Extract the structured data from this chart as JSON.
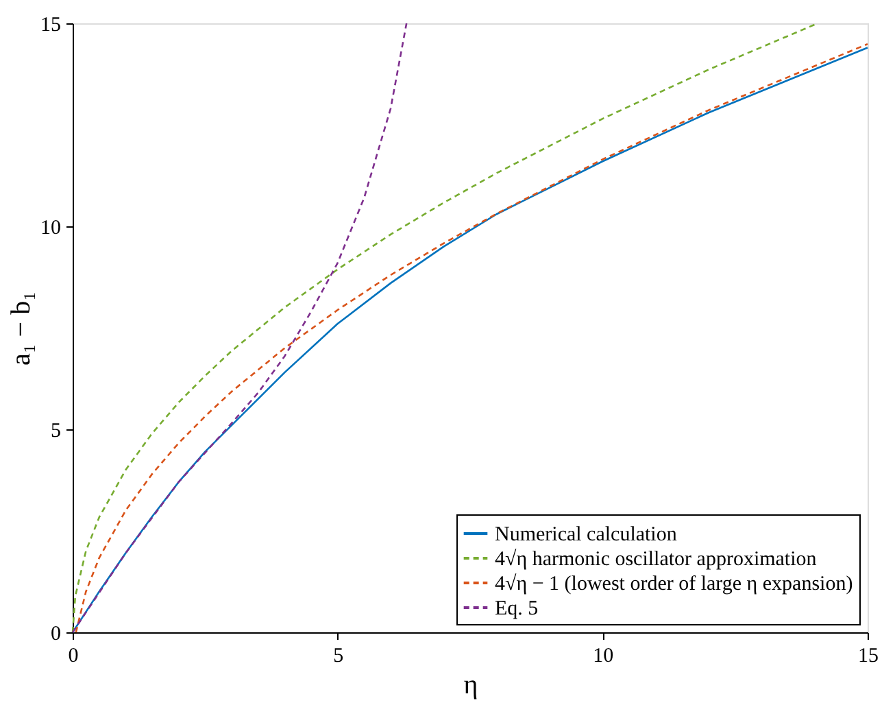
{
  "chart_data": {
    "type": "line",
    "xlabel": "η",
    "ylabel": "a₁ − b₁",
    "xlim": [
      0,
      15
    ],
    "ylim": [
      0,
      15
    ],
    "xticks": [
      0,
      5,
      10,
      15
    ],
    "yticks": [
      0,
      5,
      10,
      15
    ],
    "grid": false,
    "legend": "bottom right",
    "marker": "none",
    "series": [
      {
        "name": "Numerical calculation",
        "color": "#0072bd",
        "line_style": "solid",
        "x": [
          0,
          0.25,
          0.5,
          1,
          1.5,
          2,
          2.5,
          3,
          4,
          5,
          6,
          7,
          8,
          10,
          12,
          15
        ],
        "values": [
          0,
          0.5,
          1.0,
          1.95,
          2.85,
          3.7,
          4.45,
          5.1,
          6.4,
          7.6,
          8.6,
          9.5,
          10.3,
          11.6,
          12.8,
          14.4
        ]
      },
      {
        "name": "4√η harmonic oscillator approximation",
        "color": "#77ac30",
        "line_style": "dashed",
        "x": [
          0,
          0.05,
          0.25,
          0.5,
          1,
          1.5,
          2,
          2.5,
          3,
          4,
          5,
          6,
          7,
          8,
          10,
          12,
          14.06
        ],
        "values": [
          0,
          0.89,
          2,
          2.83,
          4,
          4.9,
          5.66,
          6.32,
          6.93,
          8,
          8.94,
          9.8,
          10.58,
          11.31,
          12.65,
          13.86,
          15
        ]
      },
      {
        "name": "4√η − 1 (lowest order of large η expansion)",
        "color": "#d95319",
        "line_style": "dashed",
        "x": [
          0.0625,
          0.25,
          0.5,
          1,
          1.5,
          2,
          2.5,
          3,
          4,
          5,
          6,
          7,
          8,
          10,
          12,
          15
        ],
        "values": [
          0,
          1,
          1.83,
          3,
          3.9,
          4.66,
          5.32,
          5.93,
          7,
          7.94,
          8.8,
          9.58,
          10.31,
          11.65,
          12.86,
          14.49
        ]
      },
      {
        "name": "Eq. 5",
        "color": "#7e2f8e",
        "line_style": "dashed",
        "x": [
          0,
          1,
          2,
          3,
          3.5,
          4,
          4.5,
          5,
          5.5,
          6,
          6.3
        ],
        "values": [
          0,
          1.95,
          3.7,
          5.15,
          5.9,
          6.8,
          7.9,
          9.1,
          10.7,
          12.9,
          15
        ]
      }
    ]
  }
}
